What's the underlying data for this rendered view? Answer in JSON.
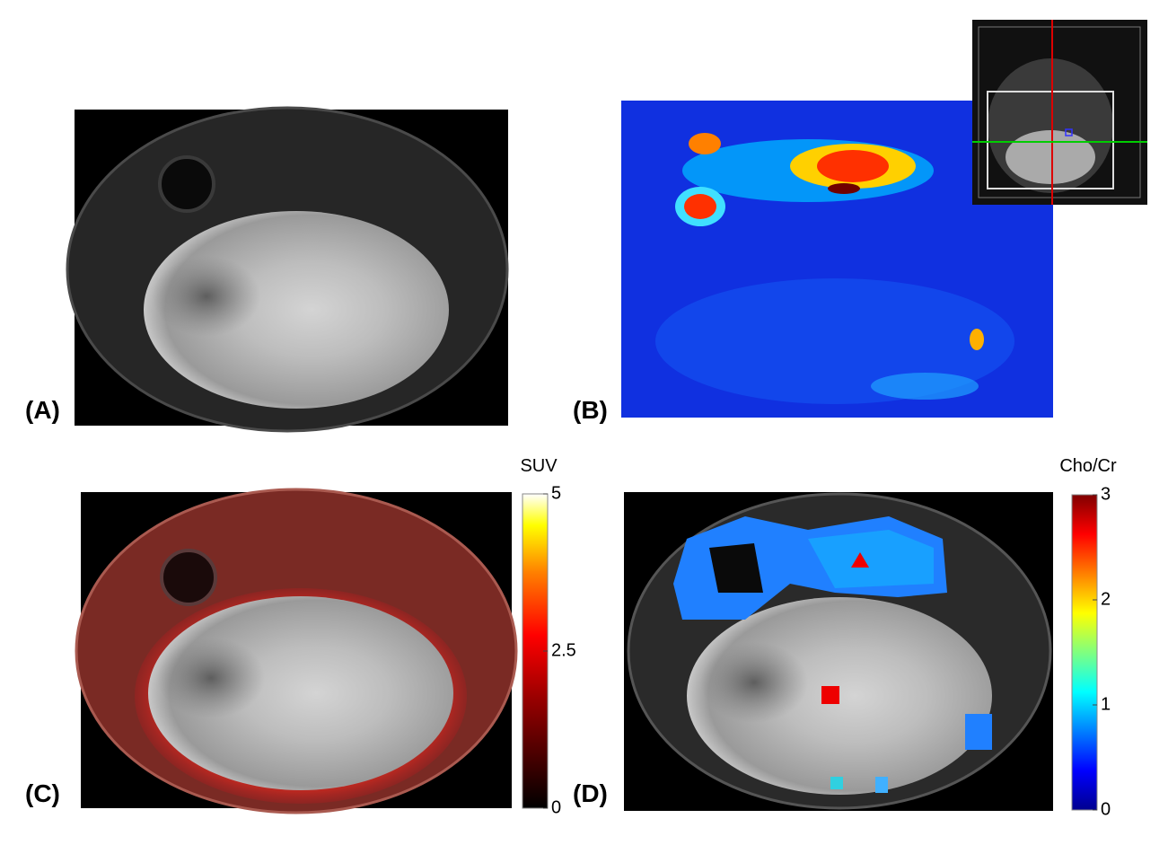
{
  "panels": [
    {
      "label": "(A)"
    },
    {
      "label": "(B)"
    },
    {
      "label": "(C)",
      "colorbar": {
        "title": "SUV",
        "lim": [
          0,
          5
        ],
        "ticks": [
          0,
          2.5,
          5
        ]
      }
    },
    {
      "label": "(D)",
      "colorbar": {
        "title": "Cho/Cr",
        "lim": [
          0,
          3
        ],
        "ticks": [
          0,
          1,
          2,
          3
        ]
      }
    }
  ]
}
